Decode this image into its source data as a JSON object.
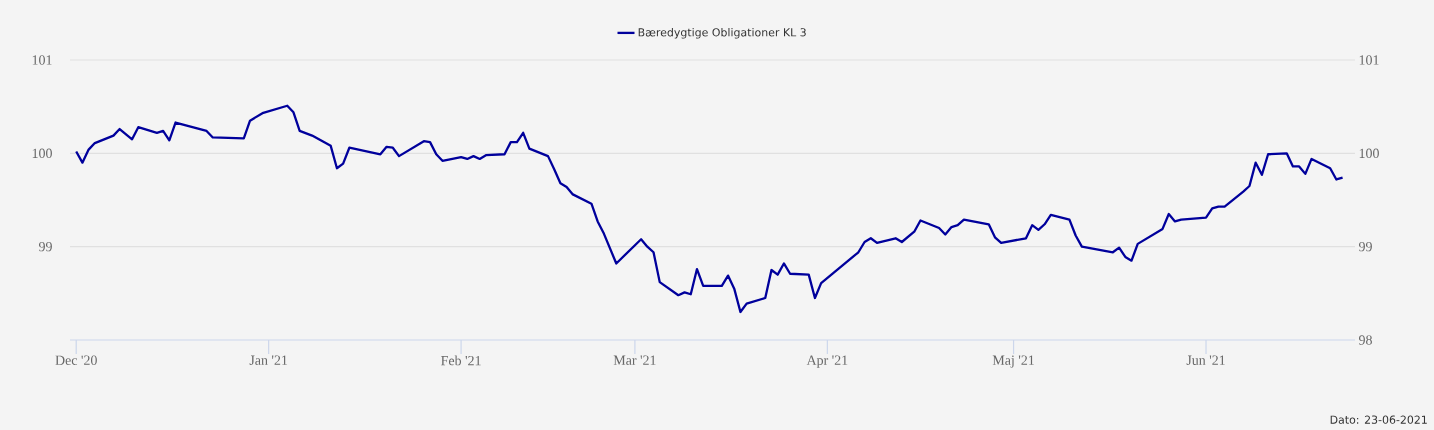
{
  "chart_data": {
    "type": "line",
    "legend": "top",
    "grid": "y",
    "marker": "none",
    "line_style": "solid",
    "xlim": [
      "2020-11-30",
      "2021-06-25"
    ],
    "xticks": [
      {
        "value": "2020-12-01",
        "label": "Dec '20"
      },
      {
        "value": "2021-01-01",
        "label": "Jan '21"
      },
      {
        "value": "2021-02-01",
        "label": "Feb '21"
      },
      {
        "value": "2021-03-01",
        "label": "Mar '21"
      },
      {
        "value": "2021-04-01",
        "label": "Apr '21"
      },
      {
        "value": "2021-05-01",
        "label": "Maj '21"
      },
      {
        "value": "2021-06-01",
        "label": "Jun '21"
      }
    ],
    "ylim": [
      98,
      101
    ],
    "yticks": [
      99,
      100,
      101
    ],
    "y2lim": [
      98,
      101
    ],
    "y2ticks": [
      98,
      99,
      100,
      101
    ],
    "annotations": [
      "Dato: 23-06-2021"
    ],
    "x": [
      "2020-12-01",
      "2020-12-02",
      "2020-12-03",
      "2020-12-04",
      "2020-12-07",
      "2020-12-08",
      "2020-12-10",
      "2020-12-11",
      "2020-12-14",
      "2020-12-15",
      "2020-12-16",
      "2020-12-17",
      "2020-12-22",
      "2020-12-23",
      "2020-12-28",
      "2020-12-29",
      "2020-12-31",
      "2021-01-04",
      "2021-01-05",
      "2021-01-06",
      "2021-01-08",
      "2021-01-11",
      "2021-01-12",
      "2021-01-13",
      "2021-01-14",
      "2021-01-19",
      "2021-01-20",
      "2021-01-21",
      "2021-01-22",
      "2021-01-26",
      "2021-01-27",
      "2021-01-28",
      "2021-01-29",
      "2021-02-01",
      "2021-02-02",
      "2021-02-03",
      "2021-02-04",
      "2021-02-05",
      "2021-02-08",
      "2021-02-09",
      "2021-02-10",
      "2021-02-11",
      "2021-02-12",
      "2021-02-15",
      "2021-02-16",
      "2021-02-17",
      "2021-02-18",
      "2021-02-19",
      "2021-02-22",
      "2021-02-23",
      "2021-02-24",
      "2021-02-26",
      "2021-03-02",
      "2021-03-03",
      "2021-03-04",
      "2021-03-05",
      "2021-03-08",
      "2021-03-09",
      "2021-03-10",
      "2021-03-11",
      "2021-03-12",
      "2021-03-15",
      "2021-03-16",
      "2021-03-17",
      "2021-03-18",
      "2021-03-19",
      "2021-03-22",
      "2021-03-23",
      "2021-03-24",
      "2021-03-25",
      "2021-03-26",
      "2021-03-29",
      "2021-03-30",
      "2021-03-31",
      "2021-04-06",
      "2021-04-07",
      "2021-04-08",
      "2021-04-09",
      "2021-04-12",
      "2021-04-13",
      "2021-04-15",
      "2021-04-16",
      "2021-04-19",
      "2021-04-20",
      "2021-04-21",
      "2021-04-22",
      "2021-04-23",
      "2021-04-27",
      "2021-04-28",
      "2021-04-29",
      "2021-05-03",
      "2021-05-04",
      "2021-05-05",
      "2021-05-06",
      "2021-05-07",
      "2021-05-10",
      "2021-05-11",
      "2021-05-12",
      "2021-05-17",
      "2021-05-18",
      "2021-05-19",
      "2021-05-20",
      "2021-05-21",
      "2021-05-25",
      "2021-05-26",
      "2021-05-27",
      "2021-05-28",
      "2021-06-01",
      "2021-06-02",
      "2021-06-03",
      "2021-06-04",
      "2021-06-07",
      "2021-06-08",
      "2021-06-09",
      "2021-06-10",
      "2021-06-11",
      "2021-06-14",
      "2021-06-15",
      "2021-06-16",
      "2021-06-17",
      "2021-06-18",
      "2021-06-21",
      "2021-06-22",
      "2021-06-23"
    ],
    "series": [
      {
        "name": "Bæredygtige Obligationer KL 3",
        "color": "#00009c",
        "values": [
          100.02,
          99.9,
          100.04,
          100.11,
          100.19,
          100.26,
          100.15,
          100.28,
          100.22,
          100.24,
          100.14,
          100.33,
          100.24,
          100.17,
          100.16,
          100.35,
          100.43,
          100.51,
          100.44,
          100.24,
          100.19,
          100.08,
          99.84,
          99.89,
          100.06,
          99.99,
          100.07,
          100.06,
          99.97,
          100.13,
          100.12,
          99.99,
          99.92,
          99.96,
          99.94,
          99.97,
          99.94,
          99.98,
          99.99,
          100.12,
          100.12,
          100.22,
          100.05,
          99.97,
          99.83,
          99.68,
          99.64,
          99.56,
          99.46,
          99.27,
          99.14,
          98.82,
          99.08,
          99.0,
          98.94,
          98.62,
          98.48,
          98.51,
          98.49,
          98.76,
          98.58,
          98.58,
          98.69,
          98.55,
          98.3,
          98.39,
          98.45,
          98.75,
          98.7,
          98.82,
          98.71,
          98.7,
          98.45,
          98.61,
          98.94,
          99.05,
          99.09,
          99.04,
          99.09,
          99.05,
          99.16,
          99.28,
          99.2,
          99.13,
          99.21,
          99.23,
          99.29,
          99.24,
          99.1,
          99.04,
          99.09,
          99.23,
          99.18,
          99.24,
          99.34,
          99.29,
          99.12,
          99.0,
          98.94,
          98.99,
          98.89,
          98.85,
          99.03,
          99.19,
          99.35,
          99.27,
          99.29,
          99.31,
          99.41,
          99.43,
          99.43,
          99.59,
          99.65,
          99.9,
          99.77,
          99.99,
          100.0,
          99.86,
          99.86,
          99.78,
          99.94,
          99.84,
          99.72,
          99.74
        ]
      }
    ]
  }
}
